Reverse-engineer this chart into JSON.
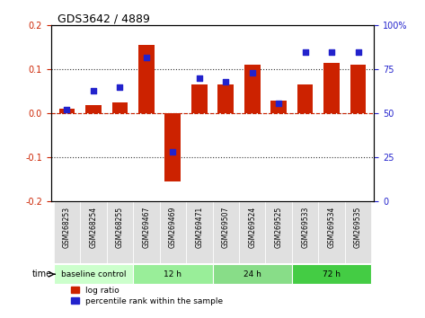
{
  "title": "GDS3642 / 4889",
  "samples": [
    "GSM268253",
    "GSM268254",
    "GSM268255",
    "GSM269467",
    "GSM269469",
    "GSM269471",
    "GSM269507",
    "GSM269524",
    "GSM269525",
    "GSM269533",
    "GSM269534",
    "GSM269535"
  ],
  "log_ratio": [
    0.01,
    0.02,
    0.025,
    0.155,
    -0.155,
    0.065,
    0.065,
    0.11,
    0.03,
    0.065,
    0.115,
    0.11
  ],
  "percentile_rank": [
    52,
    63,
    65,
    82,
    28,
    70,
    68,
    73,
    56,
    85,
    85,
    85
  ],
  "ylim_left": [
    -0.2,
    0.2
  ],
  "ylim_right": [
    0,
    100
  ],
  "yticks_left": [
    -0.2,
    -0.1,
    0.0,
    0.1,
    0.2
  ],
  "yticks_right": [
    0,
    25,
    50,
    75,
    100
  ],
  "hlines": [
    0.1,
    0.0,
    -0.1
  ],
  "bar_color": "#cc2200",
  "dot_color": "#2222cc",
  "groups": [
    {
      "label": "baseline control",
      "start": 0,
      "end": 3,
      "color": "#ccffcc"
    },
    {
      "label": "12 h",
      "start": 3,
      "end": 6,
      "color": "#99ee99"
    },
    {
      "label": "24 h",
      "start": 6,
      "end": 9,
      "color": "#88dd88"
    },
    {
      "label": "72 h",
      "start": 9,
      "end": 12,
      "color": "#44cc44"
    }
  ],
  "legend_entries": [
    "log ratio",
    "percentile rank within the sample"
  ],
  "legend_colors": [
    "#cc2200",
    "#2222cc"
  ],
  "zero_line_color": "#cc2200",
  "grid_color": "#333333",
  "time_label": "time"
}
